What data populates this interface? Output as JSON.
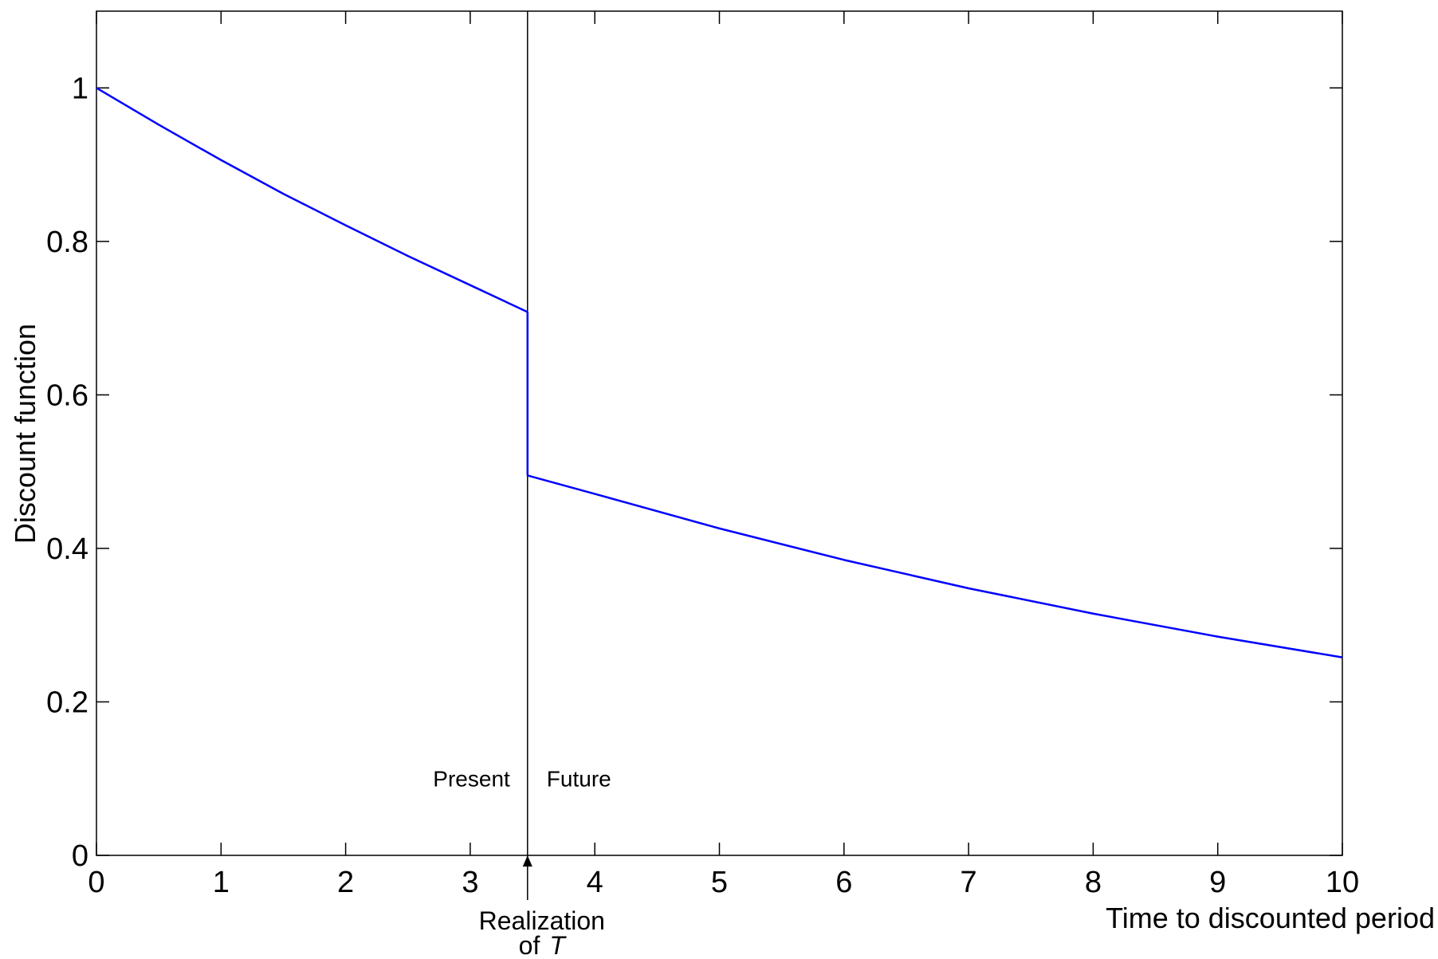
{
  "chart_data": {
    "type": "line",
    "title": "",
    "xlabel": "Time to discounted period",
    "ylabel": "Discount function",
    "xlim": [
      0,
      10
    ],
    "ylim": [
      0,
      1.1
    ],
    "xticks": [
      0,
      1,
      2,
      3,
      4,
      5,
      6,
      7,
      8,
      9,
      10
    ],
    "xtick_labels": [
      "0",
      "1",
      "2",
      "3",
      "4",
      "5",
      "6",
      "7",
      "8",
      "9",
      "10"
    ],
    "yticks": [
      0,
      0.2,
      0.4,
      0.6,
      0.8,
      1
    ],
    "ytick_labels": [
      "0",
      "0.2",
      "0.4",
      "0.6",
      "0.8",
      "1"
    ],
    "grid": false,
    "legend": "none",
    "line_color": "#0000ff",
    "series": [
      {
        "segment": "present",
        "x": [
          0,
          0.5,
          1,
          1.5,
          2,
          2.5,
          3,
          3.46
        ],
        "y": [
          1.0,
          0.952,
          0.906,
          0.862,
          0.821,
          0.781,
          0.743,
          0.708
        ]
      },
      {
        "segment": "drop",
        "x": [
          3.46,
          3.46
        ],
        "y": [
          0.708,
          0.495
        ]
      },
      {
        "segment": "future",
        "x": [
          3.46,
          4,
          5,
          6,
          7,
          8,
          9,
          10
        ],
        "y": [
          0.495,
          0.471,
          0.426,
          0.385,
          0.348,
          0.315,
          0.285,
          0.258
        ]
      }
    ],
    "vertical_marker": {
      "x": 3.46,
      "left_label": "Present",
      "right_label": "Future",
      "label_y": 0.1,
      "bottom_label_line1": "Realization",
      "bottom_label_line2_prefix": "of",
      "bottom_label_line2_symbol": "T"
    }
  }
}
